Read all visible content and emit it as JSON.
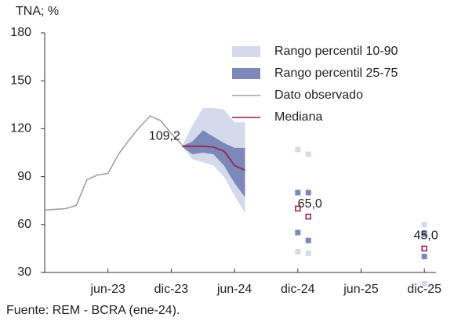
{
  "chart_data": {
    "type": "line",
    "title": "TNA; %",
    "source": "Fuente: REM - BCRA (ene-24).",
    "categories": [
      null,
      null,
      null,
      null,
      null,
      null,
      "jun-23",
      null,
      null,
      null,
      null,
      null,
      "dic-23",
      null,
      null,
      null,
      null,
      null,
      "jun-24",
      null,
      null,
      null,
      null,
      null,
      "dic-24",
      null,
      null,
      null,
      null,
      null,
      "jun-25",
      null,
      null,
      null,
      null,
      null,
      "dic-25"
    ],
    "ylim": [
      30,
      180
    ],
    "yticks": [
      30,
      60,
      90,
      120,
      150,
      180
    ],
    "legend": "top-right",
    "bands": [
      {
        "name": "Rango percentil 10-90",
        "color": "#d5d9ec",
        "high": [
          null,
          null,
          null,
          null,
          null,
          null,
          null,
          null,
          null,
          null,
          null,
          null,
          null,
          109,
          122,
          133,
          133,
          132,
          124,
          124,
          null,
          null,
          null,
          null,
          107,
          104,
          null,
          null,
          null,
          null,
          null,
          null,
          null,
          null,
          null,
          null,
          60
        ],
        "low": [
          null,
          null,
          null,
          null,
          null,
          null,
          null,
          null,
          null,
          null,
          null,
          null,
          null,
          109,
          101,
          99,
          97,
          90,
          78,
          67,
          null,
          null,
          null,
          null,
          43,
          42,
          null,
          null,
          null,
          null,
          null,
          null,
          null,
          null,
          null,
          null,
          23
        ]
      },
      {
        "name": "Rango percentil 25-75",
        "color": "#7b88b8",
        "high": [
          null,
          null,
          null,
          null,
          null,
          null,
          null,
          null,
          null,
          null,
          null,
          null,
          null,
          109,
          112,
          119,
          115,
          111,
          108,
          108,
          null,
          null,
          null,
          null,
          80,
          80,
          null,
          null,
          null,
          null,
          null,
          null,
          null,
          null,
          null,
          null,
          54
        ],
        "low": [
          null,
          null,
          null,
          null,
          null,
          null,
          null,
          null,
          null,
          null,
          null,
          null,
          null,
          109,
          104,
          105,
          104,
          97,
          86,
          77,
          null,
          null,
          null,
          null,
          55,
          50,
          null,
          null,
          null,
          null,
          null,
          null,
          null,
          null,
          null,
          null,
          40
        ]
      }
    ],
    "series": [
      {
        "name": "Dato observado",
        "color": "#a0a0a0",
        "values": [
          69,
          69.5,
          70,
          72,
          88,
          91,
          92,
          104,
          113,
          121,
          128,
          125,
          117,
          110,
          null,
          null,
          null,
          null,
          null,
          null,
          null,
          null,
          null,
          null,
          null,
          null,
          null,
          null,
          null,
          null,
          null,
          null,
          null,
          null,
          null,
          null,
          null
        ]
      },
      {
        "name": "Mediana",
        "color": "#a0174a",
        "values": [
          null,
          null,
          null,
          null,
          null,
          null,
          null,
          null,
          null,
          null,
          null,
          null,
          null,
          109.2,
          109,
          109,
          108.5,
          106,
          97,
          94,
          null,
          null,
          null,
          null,
          70,
          65,
          null,
          null,
          null,
          null,
          null,
          null,
          null,
          null,
          null,
          null,
          45
        ],
        "value_labels": [
          null,
          null,
          null,
          null,
          null,
          null,
          null,
          null,
          null,
          null,
          null,
          null,
          null,
          "109,2",
          null,
          null,
          null,
          null,
          null,
          null,
          null,
          null,
          null,
          null,
          null,
          "65,0",
          null,
          null,
          null,
          null,
          null,
          null,
          null,
          null,
          null,
          null,
          "45,0"
        ]
      }
    ]
  }
}
